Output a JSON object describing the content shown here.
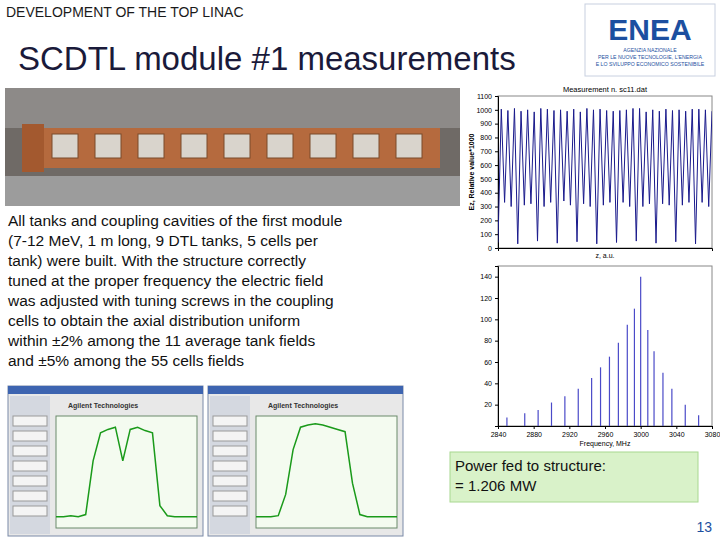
{
  "slide": {
    "kicker": "DEVELOPMENT OF THE TOP LINAC",
    "title": "SCDTL module #1 measurements",
    "page_number": "13"
  },
  "logo": {
    "name": "ENEA",
    "lines": [
      "AGENZIA NAZIONALE",
      "PER LE NUOVE TECNOLOGIE, L'ENERGIA",
      "E LO SVILUPPO ECONOMICO SOSTENIBILE"
    ]
  },
  "paragraph": [
    "All tanks and coupling cavities of the first module",
    "(7-12 MeV, 1 m long, 9 DTL tanks, 5 cells per",
    "tank) were built. With the structure correctly",
    "tuned at the proper frequency the electric field",
    "was adjusted with tuning screws in the coupling",
    "cells to obtain the axial distribution uniform",
    "within ±2% among the 11 average tank fields",
    "and ±5% among the 55 cells fields"
  ],
  "power_box": [
    "Power fed to structure:",
    "= 1.206 MW"
  ],
  "chart_data": [
    {
      "type": "line",
      "title": "Measurement n. sc11.dat",
      "xlabel": "z, a.u.",
      "ylabel": "Ez, Relative value*1000",
      "color": "#1a1a8c",
      "x": [
        0,
        1,
        2,
        3,
        4,
        5,
        6,
        7,
        8,
        9,
        10,
        11,
        12,
        13,
        14,
        15,
        16,
        17,
        18,
        19,
        20,
        21,
        22,
        23,
        24,
        25,
        26,
        27,
        28,
        29,
        30,
        31,
        32,
        33,
        34,
        35,
        36,
        37,
        38,
        39,
        40,
        41,
        42,
        43,
        44,
        45,
        46,
        47,
        48,
        49,
        50,
        51,
        52,
        53,
        54,
        55,
        56,
        57,
        58,
        59,
        60,
        61,
        62,
        63,
        64,
        65
      ],
      "values": [
        40,
        1005,
        330,
        995,
        300,
        1010,
        30,
        990,
        310,
        1000,
        320,
        985,
        50,
        1010,
        300,
        1005,
        330,
        995,
        35,
        1000,
        340,
        990,
        310,
        1005,
        45,
        985,
        320,
        1010,
        300,
        1000,
        30,
        1005,
        310,
        995,
        330,
        990,
        40,
        995,
        330,
        1000,
        300,
        1010,
        50,
        1010,
        300,
        985,
        320,
        1000,
        35,
        990,
        320,
        1005,
        310,
        995,
        45,
        1000,
        310,
        990,
        330,
        1005,
        30,
        1005,
        330,
        1000,
        300,
        990
      ],
      "xlim": [
        0,
        65
      ],
      "ylim": [
        0,
        1100
      ],
      "yticks": [
        0,
        100,
        200,
        300,
        400,
        500,
        600,
        700,
        800,
        900,
        1000,
        1100
      ],
      "tick_labels": "y"
    },
    {
      "type": "stem",
      "xlabel": "Frequency, MHz",
      "color": "#4a4ac8",
      "x": [
        2850,
        2870,
        2885,
        2900,
        2915,
        2930,
        2945,
        2955,
        2965,
        2975,
        2985,
        2993,
        3000,
        3008,
        3015,
        3025,
        3035,
        3050,
        3065
      ],
      "values": [
        8,
        12,
        15,
        22,
        28,
        35,
        45,
        55,
        65,
        78,
        95,
        110,
        140,
        90,
        70,
        50,
        35,
        20,
        10
      ],
      "xlim": [
        2840,
        3080
      ],
      "xticks": [
        2840,
        2880,
        2920,
        2960,
        3000,
        3040,
        3080
      ],
      "ylim": [
        0,
        150
      ],
      "yticks": [
        20,
        40,
        60,
        80,
        100,
        120,
        140
      ]
    }
  ],
  "screenshots": [
    {
      "title": "Agilent Technologies",
      "ylim": [
        0,
        100
      ],
      "trace": [
        10,
        10,
        11,
        10,
        12,
        60,
        85,
        88,
        90,
        60,
        88,
        90,
        87,
        85,
        20,
        11,
        10,
        10,
        10,
        10
      ]
    },
    {
      "title": "Agilent Technologies",
      "ylim": [
        0,
        100
      ],
      "trace": [
        10,
        10,
        10,
        11,
        30,
        70,
        90,
        92,
        93,
        92,
        90,
        88,
        86,
        40,
        12,
        10,
        10,
        10,
        10,
        10
      ]
    }
  ]
}
